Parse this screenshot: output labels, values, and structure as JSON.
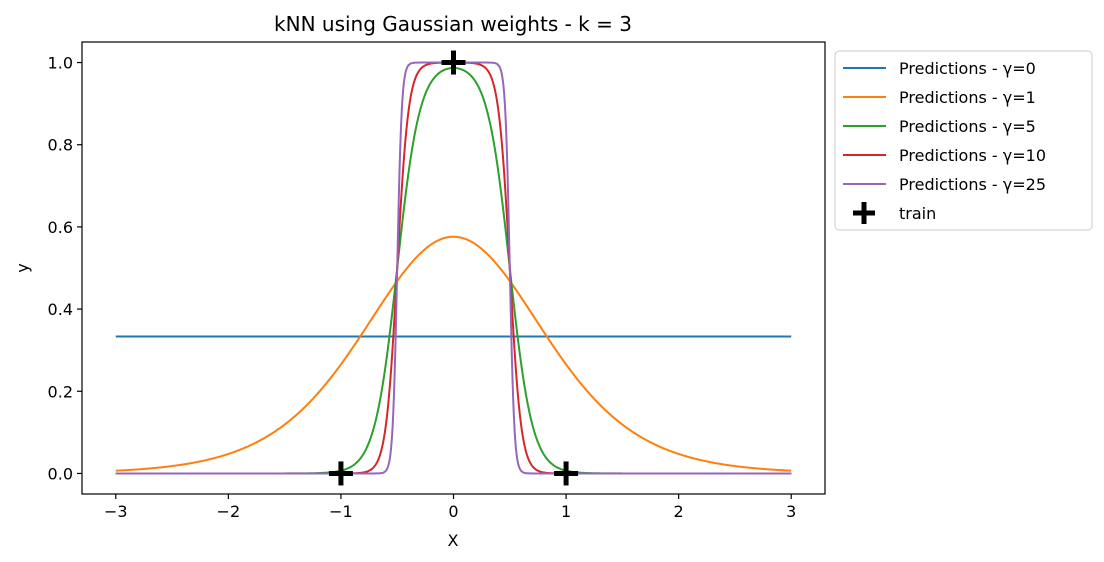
{
  "chart_data": {
    "type": "line",
    "title": "kNN using Gaussian weights - k = 3",
    "xlabel": "X",
    "ylabel": "y",
    "xlim": [
      -3.3,
      3.3
    ],
    "ylim": [
      -0.05,
      1.05
    ],
    "xticks": [
      -3,
      -2,
      -1,
      0,
      1,
      2,
      3
    ],
    "xtick_labels": [
      "−3",
      "−2",
      "−1",
      "0",
      "1",
      "2",
      "3"
    ],
    "yticks": [
      0.0,
      0.2,
      0.4,
      0.6,
      0.8,
      1.0
    ],
    "ytick_labels": [
      "0.0",
      "0.2",
      "0.4",
      "0.6",
      "0.8",
      "1.0"
    ],
    "grid": false,
    "legend_position": "outside-right-top",
    "series": [
      {
        "name": "Predictions - γ=0",
        "gamma": 0,
        "color": "#1f77b4",
        "x_range": [
          -3,
          3
        ]
      },
      {
        "name": "Predictions - γ=1",
        "gamma": 1,
        "color": "#ff7f0e",
        "x_range": [
          -3,
          3
        ]
      },
      {
        "name": "Predictions - γ=5",
        "gamma": 5,
        "color": "#2ca02c",
        "x_range": [
          -3,
          3
        ]
      },
      {
        "name": "Predictions - γ=10",
        "gamma": 10,
        "color": "#d62728",
        "x_range": [
          -3,
          3
        ]
      },
      {
        "name": "Predictions - γ=25",
        "gamma": 25,
        "color": "#9467bd",
        "x_range": [
          -3,
          3
        ]
      }
    ],
    "train": {
      "name": "train",
      "marker": "plus",
      "color": "#000000",
      "points": [
        {
          "x": -1,
          "y": 0
        },
        {
          "x": 0,
          "y": 1
        },
        {
          "x": 1,
          "y": 0
        }
      ]
    }
  }
}
